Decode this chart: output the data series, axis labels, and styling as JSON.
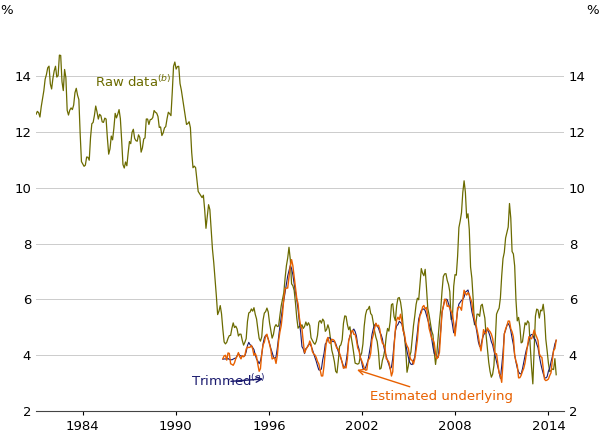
{
  "raw_color": "#6b6b00",
  "trimmed_color": "#1a1a6e",
  "estimated_color": "#e86000",
  "ylim": [
    2,
    16
  ],
  "yticks": [
    2,
    4,
    6,
    8,
    10,
    12,
    14
  ],
  "xlabel_years": [
    1984,
    1990,
    1996,
    2002,
    2008,
    2014
  ],
  "xlim": [
    1981.0,
    2015.0
  ],
  "background_color": "#ffffff",
  "grid_color": "#cccccc",
  "raw_label": "Raw data$^{(b)}$",
  "trimmed_label": "Trimmed$^{(a)}$",
  "estimated_label": "Estimated underlying"
}
